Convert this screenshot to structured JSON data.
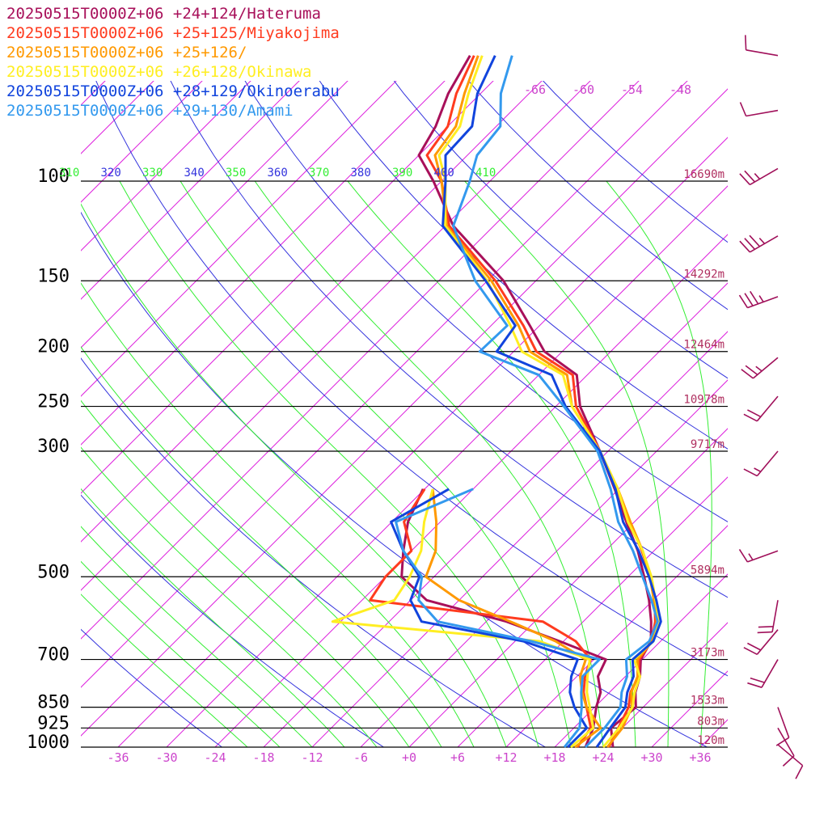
{
  "chart_data": {
    "type": "line",
    "title": "",
    "xlabel": "",
    "ylabel": "",
    "y_scale": "log-pressure",
    "xlim": [
      -40,
      40
    ],
    "ylim": [
      1000,
      100
    ],
    "pressure_levels": [
      100,
      150,
      200,
      250,
      300,
      500,
      700,
      850,
      925,
      1000
    ],
    "pressure_labels": [
      "100",
      "150",
      "200",
      "250",
      "300",
      "500",
      "700",
      "850",
      "925",
      "1000"
    ],
    "height_labels": [
      "16690m",
      "14292m",
      "12464m",
      "10978m",
      "9717m",
      "5894m",
      "3173m",
      "1533m",
      "803m",
      "120m"
    ],
    "temperature_ticks": [
      -36,
      -30,
      -24,
      -18,
      -12,
      -6,
      0,
      6,
      12,
      18,
      24,
      30,
      36
    ],
    "temperature_tick_labels": [
      "-36",
      "-30",
      "-24",
      "-18",
      "-12",
      "-6",
      "+0",
      "+6",
      "+12",
      "+18",
      "+24",
      "+30",
      "+36"
    ],
    "upper_temperature_labels": [
      "-66",
      "-60",
      "-54",
      "-48"
    ],
    "theta_labels": [
      "310",
      "320",
      "330",
      "340",
      "350",
      "360",
      "370",
      "380",
      "390",
      "400",
      "410"
    ],
    "colors": {
      "isobar": "#000000",
      "isotherm": "#dd22dd",
      "dry_adiabat": "#3333dd",
      "moist_adiabat": "#33ee33",
      "label_magenta": "#cc44cc",
      "wind_barb": "#a0105a"
    },
    "series": [
      {
        "name": "20250515T0000Z+06 +24+124/Hateruma",
        "color": "#a8105a",
        "temperature": [
          [
            1000,
            25.2
          ],
          [
            925,
            22.6
          ],
          [
            850,
            23.1
          ],
          [
            800,
            21.2
          ],
          [
            750,
            19.8
          ],
          [
            700,
            17.8
          ],
          [
            650,
            16.8
          ],
          [
            600,
            14.4
          ],
          [
            550,
            11.5
          ],
          [
            500,
            8.0
          ],
          [
            450,
            4.0
          ],
          [
            400,
            -1.0
          ],
          [
            350,
            -6.5
          ],
          [
            300,
            -13.0
          ],
          [
            250,
            -21.0
          ],
          [
            220,
            -25.3
          ],
          [
            200,
            -32.2
          ],
          [
            180,
            -37.2
          ],
          [
            150,
            -46.0
          ],
          [
            120,
            -59.0
          ],
          [
            100,
            -67.0
          ],
          [
            90,
            -72.0
          ],
          [
            80,
            -73.5
          ],
          [
            70,
            -76.0
          ],
          [
            60,
            -78.0
          ]
        ],
        "dewpoint": [
          [
            1000,
            21.8
          ],
          [
            925,
            20.4
          ],
          [
            850,
            18.2
          ],
          [
            800,
            16.9
          ],
          [
            750,
            14.6
          ],
          [
            700,
            13.5
          ],
          [
            650,
            5.5
          ],
          [
            600,
            -3.5
          ],
          [
            550,
            -16.0
          ],
          [
            500,
            -22.0
          ],
          [
            450,
            -25.0
          ],
          [
            400,
            -28.0
          ],
          [
            350,
            -30.2
          ]
        ]
      },
      {
        "name": "20250515T0000Z+06 +25+125/Miyakojima",
        "color": "#ff3b1f",
        "temperature": [
          [
            1000,
            24.7
          ],
          [
            925,
            23.5
          ],
          [
            850,
            22.2
          ],
          [
            800,
            20.6
          ],
          [
            750,
            19.6
          ],
          [
            700,
            17.6
          ],
          [
            650,
            16.9
          ],
          [
            600,
            14.9
          ],
          [
            550,
            12.2
          ],
          [
            500,
            8.8
          ],
          [
            450,
            4.5
          ],
          [
            400,
            -0.6
          ],
          [
            350,
            -6.2
          ],
          [
            300,
            -13.0
          ],
          [
            250,
            -21.5
          ],
          [
            220,
            -25.8
          ],
          [
            200,
            -33.2
          ],
          [
            180,
            -38.0
          ],
          [
            150,
            -47.0
          ],
          [
            120,
            -59.5
          ],
          [
            100,
            -66.0
          ],
          [
            90,
            -71.0
          ],
          [
            80,
            -72.0
          ],
          [
            70,
            -75.0
          ],
          [
            60,
            -77.5
          ]
        ],
        "dewpoint": [
          [
            1000,
            20.8
          ],
          [
            925,
            20.1
          ],
          [
            850,
            17.0
          ],
          [
            800,
            14.8
          ],
          [
            750,
            13.0
          ],
          [
            700,
            11.6
          ],
          [
            650,
            7.5
          ],
          [
            600,
            1.0
          ],
          [
            550,
            -23.0
          ],
          [
            500,
            -24.0
          ],
          [
            450,
            -24.0
          ],
          [
            400,
            -28.5
          ],
          [
            350,
            -30.0
          ]
        ]
      },
      {
        "name": "20250515T0000Z+06 +25+126/",
        "color": "#ff9900",
        "temperature": [
          [
            1000,
            24.5
          ],
          [
            925,
            24.0
          ],
          [
            850,
            22.6
          ],
          [
            800,
            20.7
          ],
          [
            750,
            19.5
          ],
          [
            700,
            17.4
          ],
          [
            650,
            16.9
          ],
          [
            600,
            15.1
          ],
          [
            550,
            12.1
          ],
          [
            500,
            8.7
          ],
          [
            450,
            4.6
          ],
          [
            400,
            -0.5
          ],
          [
            350,
            -6.1
          ],
          [
            300,
            -13.0
          ],
          [
            250,
            -22.0
          ],
          [
            220,
            -26.5
          ],
          [
            200,
            -34.0
          ],
          [
            180,
            -38.6
          ],
          [
            150,
            -47.5
          ],
          [
            120,
            -59.8
          ],
          [
            100,
            -66.0
          ],
          [
            90,
            -70.0
          ],
          [
            80,
            -71.0
          ],
          [
            70,
            -74.0
          ],
          [
            60,
            -77.0
          ]
        ],
        "dewpoint": [
          [
            1000,
            20.5
          ],
          [
            925,
            21.3
          ],
          [
            850,
            17.0
          ],
          [
            800,
            14.6
          ],
          [
            750,
            12.4
          ],
          [
            700,
            11.0
          ],
          [
            650,
            5.0
          ],
          [
            600,
            -3.0
          ],
          [
            550,
            -12.0
          ],
          [
            500,
            -19.0
          ],
          [
            450,
            -21.0
          ],
          [
            400,
            -24.5
          ],
          [
            350,
            -29.0
          ]
        ]
      },
      {
        "name": "20250515T0000Z+06 +26+128/Okinawa",
        "color": "#ffee22",
        "temperature": [
          [
            1000,
            24.0
          ],
          [
            925,
            23.6
          ],
          [
            850,
            22.7
          ],
          [
            800,
            21.1
          ],
          [
            750,
            19.8
          ],
          [
            700,
            17.0
          ],
          [
            650,
            17.1
          ],
          [
            600,
            15.4
          ],
          [
            550,
            12.3
          ],
          [
            500,
            8.9
          ],
          [
            450,
            4.6
          ],
          [
            400,
            -0.8
          ],
          [
            350,
            -6.1
          ],
          [
            300,
            -13.0
          ],
          [
            250,
            -22.0
          ],
          [
            220,
            -27.0
          ],
          [
            200,
            -35.0
          ],
          [
            180,
            -39.6
          ],
          [
            150,
            -48.0
          ],
          [
            120,
            -60.0
          ],
          [
            100,
            -65.5
          ],
          [
            90,
            -69.5
          ],
          [
            80,
            -70.5
          ],
          [
            70,
            -73.5
          ],
          [
            60,
            -76.5
          ]
        ],
        "dewpoint": [
          [
            1000,
            20.0
          ],
          [
            925,
            20.4
          ],
          [
            850,
            17.4
          ],
          [
            800,
            15.2
          ],
          [
            750,
            13.3
          ],
          [
            700,
            11.5
          ],
          [
            650,
            3.0
          ],
          [
            600,
            -25.0
          ],
          [
            550,
            -20.0
          ],
          [
            500,
            -21.0
          ],
          [
            450,
            -22.8
          ],
          [
            400,
            -26.0
          ],
          [
            350,
            -29.0
          ]
        ]
      },
      {
        "name": "20250515T0000Z+06 +28+129/Okinoerabu",
        "color": "#1144dd",
        "temperature": [
          [
            1000,
            23.2
          ],
          [
            925,
            22.5
          ],
          [
            850,
            21.8
          ],
          [
            800,
            20.2
          ],
          [
            750,
            19.0
          ],
          [
            700,
            16.8
          ],
          [
            650,
            17.1
          ],
          [
            600,
            15.6
          ],
          [
            550,
            12.4
          ],
          [
            500,
            8.6
          ],
          [
            450,
            4.1
          ],
          [
            400,
            -1.4
          ],
          [
            350,
            -6.4
          ],
          [
            300,
            -13.0
          ],
          [
            250,
            -22.8
          ],
          [
            220,
            -28.4
          ],
          [
            200,
            -38.1
          ],
          [
            180,
            -39.0
          ],
          [
            150,
            -48.2
          ],
          [
            120,
            -60.3
          ],
          [
            100,
            -65.5
          ],
          [
            90,
            -68.7
          ],
          [
            80,
            -69.0
          ],
          [
            70,
            -72.4
          ],
          [
            60,
            -74.9
          ]
        ],
        "dewpoint": [
          [
            1000,
            19.6
          ],
          [
            925,
            19.6
          ],
          [
            850,
            15.5
          ],
          [
            800,
            13.1
          ],
          [
            750,
            11.3
          ],
          [
            700,
            10.0
          ],
          [
            650,
            1.0
          ],
          [
            600,
            -14.0
          ],
          [
            550,
            -18.0
          ],
          [
            500,
            -19.8
          ],
          [
            450,
            -25.0
          ],
          [
            400,
            -30.1
          ],
          [
            350,
            -27.0
          ]
        ]
      },
      {
        "name": "20250515T0000Z+06 +29+130/Amami",
        "color": "#3399ee",
        "temperature": [
          [
            1000,
            21.8
          ],
          [
            925,
            21.8
          ],
          [
            850,
            21.2
          ],
          [
            800,
            19.5
          ],
          [
            750,
            18.2
          ],
          [
            700,
            16.0
          ],
          [
            650,
            16.6
          ],
          [
            600,
            15.2
          ],
          [
            550,
            11.8
          ],
          [
            500,
            7.8
          ],
          [
            450,
            3.4
          ],
          [
            400,
            -2.0
          ],
          [
            350,
            -7.0
          ],
          [
            300,
            -13.3
          ],
          [
            250,
            -23.0
          ],
          [
            220,
            -30.0
          ],
          [
            200,
            -40.2
          ],
          [
            180,
            -40.0
          ],
          [
            150,
            -49.5
          ],
          [
            120,
            -59.0
          ],
          [
            100,
            -62.5
          ],
          [
            90,
            -64.8
          ],
          [
            80,
            -65.5
          ],
          [
            70,
            -69.5
          ],
          [
            60,
            -72.8
          ]
        ],
        "dewpoint": [
          [
            1000,
            19.2
          ],
          [
            925,
            18.7
          ],
          [
            850,
            16.4
          ],
          [
            800,
            14.5
          ],
          [
            750,
            12.7
          ],
          [
            700,
            12.7
          ],
          [
            650,
            2.0
          ],
          [
            600,
            -12.0
          ],
          [
            550,
            -17.0
          ],
          [
            500,
            -19.5
          ],
          [
            450,
            -25.0
          ],
          [
            400,
            -29.5
          ],
          [
            350,
            -24.0
          ]
        ]
      }
    ],
    "wind_barbs": [
      {
        "pressure": 60,
        "speed_kt": 10,
        "dir": 280
      },
      {
        "pressure": 75,
        "speed_kt": 10,
        "dir": 260
      },
      {
        "pressure": 95,
        "speed_kt": 25,
        "dir": 240
      },
      {
        "pressure": 125,
        "speed_kt": 35,
        "dir": 240
      },
      {
        "pressure": 160,
        "speed_kt": 35,
        "dir": 250
      },
      {
        "pressure": 205,
        "speed_kt": 25,
        "dir": 230
      },
      {
        "pressure": 240,
        "speed_kt": 20,
        "dir": 220
      },
      {
        "pressure": 300,
        "speed_kt": 15,
        "dir": 220
      },
      {
        "pressure": 450,
        "speed_kt": 15,
        "dir": 250
      },
      {
        "pressure": 550,
        "speed_kt": 20,
        "dir": 190
      },
      {
        "pressure": 620,
        "speed_kt": 20,
        "dir": 220
      },
      {
        "pressure": 700,
        "speed_kt": 20,
        "dir": 210
      },
      {
        "pressure": 850,
        "speed_kt": 10,
        "dir": 160
      },
      {
        "pressure": 925,
        "speed_kt": 10,
        "dir": 150
      },
      {
        "pressure": 990,
        "speed_kt": 10,
        "dir": 130
      }
    ]
  }
}
